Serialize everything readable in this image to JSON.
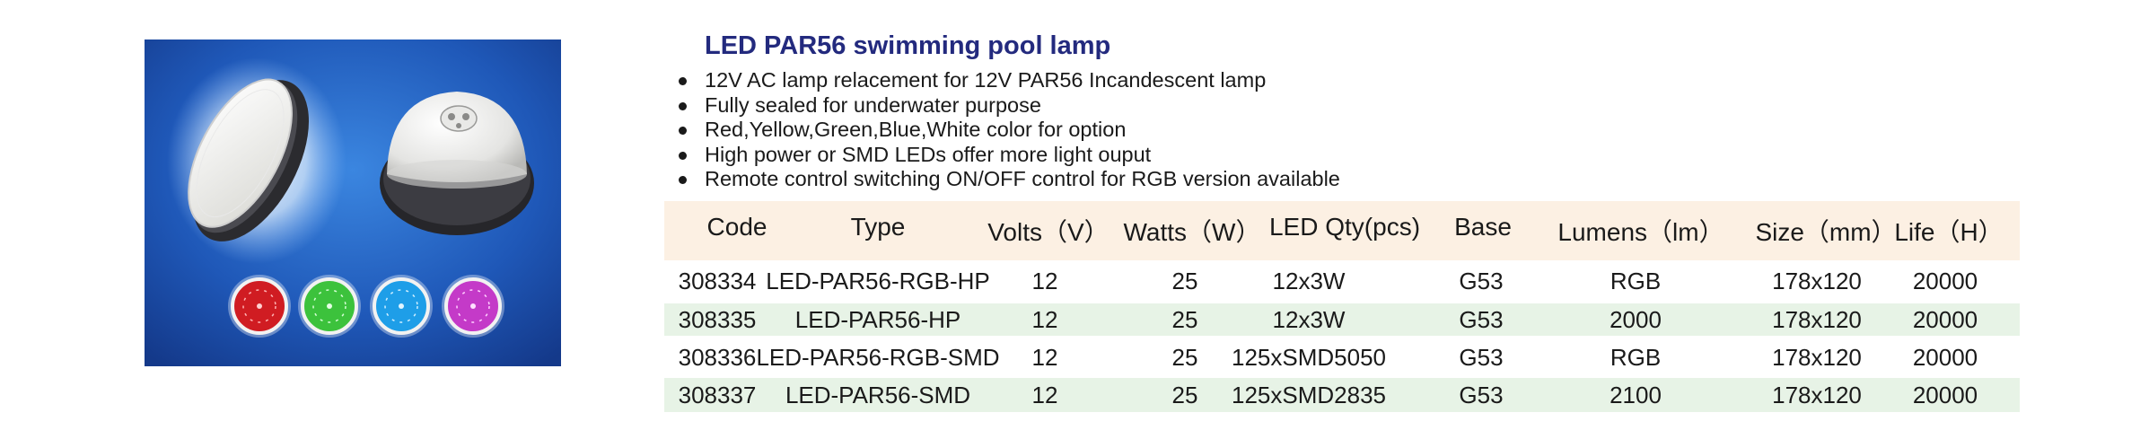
{
  "title": "LED PAR56 swimming pool lamp",
  "features": [
    "12V AC lamp relacement for 12V PAR56 Incandescent lamp",
    "Fully sealed for underwater purpose",
    "Red,Yellow,Green,Blue,White color for option",
    "High power or SMD LEDs offer more light ouput",
    "Remote control switching ON/OFF control for RGB version available"
  ],
  "table": {
    "headers": [
      "Code",
      "Type",
      "Volts（V）",
      "Watts（W）",
      "LED Qty(pcs)",
      "Base",
      "Lumens（lm）",
      "Size（mm）",
      "Life（H）"
    ],
    "rows": [
      {
        "code": "308334",
        "type": "LED-PAR56-RGB-HP",
        "volts": "12",
        "watts": "25",
        "qty": "12x3W",
        "base": "G53",
        "lumens": "RGB",
        "size": "178x120",
        "life": "20000"
      },
      {
        "code": "308335",
        "type": "LED-PAR56-HP",
        "volts": "12",
        "watts": "25",
        "qty": "12x3W",
        "base": "G53",
        "lumens": "2000",
        "size": "178x120",
        "life": "20000"
      },
      {
        "code": "308336",
        "type": "LED-PAR56-RGB-SMD",
        "volts": "12",
        "watts": "25",
        "qty": "125xSMD5050",
        "base": "G53",
        "lumens": "RGB",
        "size": "178x120",
        "life": "20000"
      },
      {
        "code": "308337",
        "type": "LED-PAR56-SMD",
        "volts": "12",
        "watts": "25",
        "qty": "125xSMD2835",
        "base": "G53",
        "lumens": "2100",
        "size": "178x120",
        "life": "20000"
      }
    ]
  },
  "colors": {
    "title": "#232a7e",
    "header_band": "#fcf0e3",
    "row_band": "#e7f3e6",
    "photo_background": "#1f58b8",
    "led_colors": [
      "#d01c22",
      "#3cc23c",
      "#1e9ee8",
      "#c43ac8"
    ]
  }
}
